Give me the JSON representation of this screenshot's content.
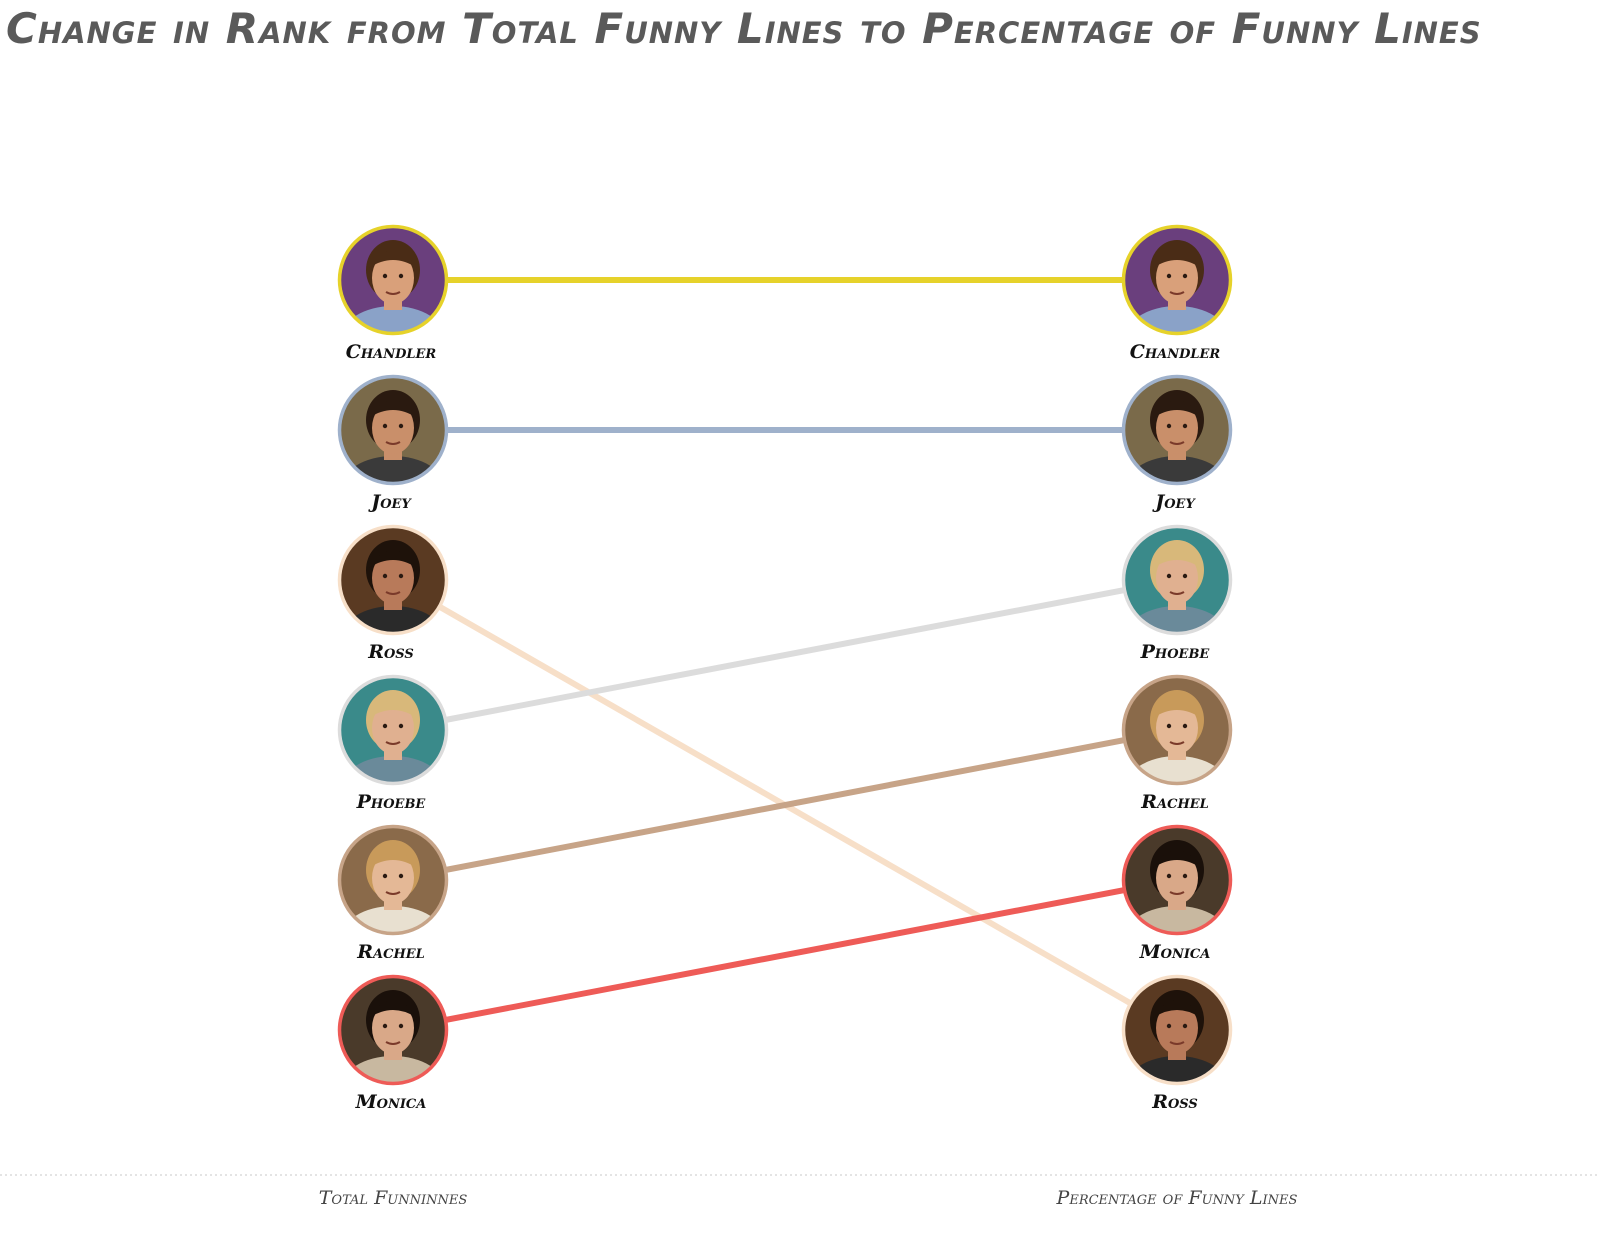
{
  "title": "Change in Rank from Total Funny Lines to Percentage of Funny Lines",
  "chart_data": {
    "type": "slope",
    "columns": [
      "Total Funninnes",
      "Percentage of Funny Lines"
    ],
    "series": [
      {
        "name": "Chandler",
        "left_rank": 1,
        "right_rank": 1,
        "color": "#e6d22a",
        "avatar": {
          "bg": "#6a3f7d",
          "skin": "#d9a07a",
          "hair": "#4a2c16",
          "shirt": "#8aa2c8"
        }
      },
      {
        "name": "Joey",
        "left_rank": 2,
        "right_rank": 2,
        "color": "#9fb1cb",
        "avatar": {
          "bg": "#7a6a4a",
          "skin": "#c98f6a",
          "hair": "#2a1a10",
          "shirt": "#3a3a3a"
        }
      },
      {
        "name": "Ross",
        "left_rank": 3,
        "right_rank": 6,
        "color": "#f7dfc8",
        "avatar": {
          "bg": "#5a3a22",
          "skin": "#b87a5a",
          "hair": "#1e120a",
          "shirt": "#2a2a2a"
        }
      },
      {
        "name": "Phoebe",
        "left_rank": 4,
        "right_rank": 3,
        "color": "#dcdcdc",
        "avatar": {
          "bg": "#3a8a8a",
          "skin": "#e0b090",
          "hair": "#d8b87a",
          "shirt": "#6a8a9a"
        }
      },
      {
        "name": "Rachel",
        "left_rank": 5,
        "right_rank": 4,
        "color": "#c7a488",
        "avatar": {
          "bg": "#8a6a4a",
          "skin": "#e4b896",
          "hair": "#c89a5a",
          "shirt": "#e8e0d0"
        }
      },
      {
        "name": "Monica",
        "left_rank": 6,
        "right_rank": 5,
        "color": "#ee5b57",
        "avatar": {
          "bg": "#4a3a2a",
          "skin": "#d9a888",
          "hair": "#1a100a",
          "shirt": "#c8b8a0"
        }
      }
    ]
  }
}
